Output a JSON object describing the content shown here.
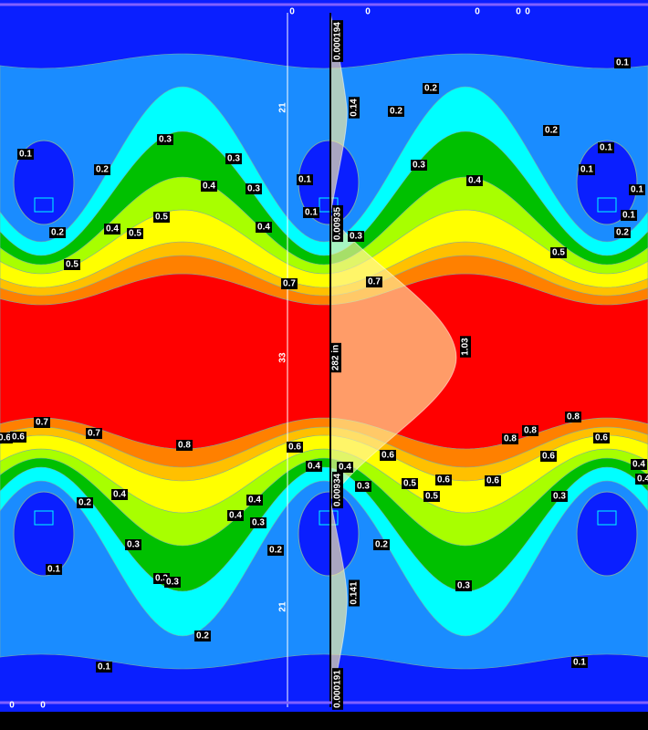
{
  "top_markers": [
    "0",
    "0",
    "0",
    "0",
    "0"
  ],
  "bottom_markers": [
    "0",
    "0"
  ],
  "profile_labels": [
    "0.000194",
    "0.14",
    "0.00935",
    "282 in",
    "1.03",
    "0.00934",
    "0.141",
    "0.000191"
  ],
  "dimension_labels": [
    "21",
    "33",
    "21"
  ],
  "contour_labels": [
    "0.1",
    "0.2",
    "0.2",
    "0.2",
    "0.1",
    "0.3",
    "0.1",
    "0.3",
    "0.3",
    "0.1",
    "0.2",
    "0.1",
    "0.4",
    "0.3",
    "0.4",
    "0.1",
    "0.1",
    "0.1",
    "0.5",
    "0.4",
    "0.5",
    "0.4",
    "0.2",
    "0.2",
    "0.3",
    "0.5",
    "0.5",
    "0.7",
    "0.7",
    "0.7",
    "0.6",
    "0.6",
    "0.7",
    "0.8",
    "0.8",
    "0.8",
    "0.6",
    "0.8",
    "0.6",
    "0.6",
    "0.6",
    "0.4",
    "0.4",
    "0.4",
    "0.4",
    "0.6",
    "0.5",
    "0.6",
    "0.3",
    "0.5",
    "0.4",
    "0.2",
    "0.4",
    "0.3",
    "0.4",
    "0.3",
    "0.3",
    "0.2",
    "0.2",
    "0.1",
    "0.3",
    "0.3",
    "0.3",
    "0.2",
    "0.1",
    "0.1"
  ]
}
